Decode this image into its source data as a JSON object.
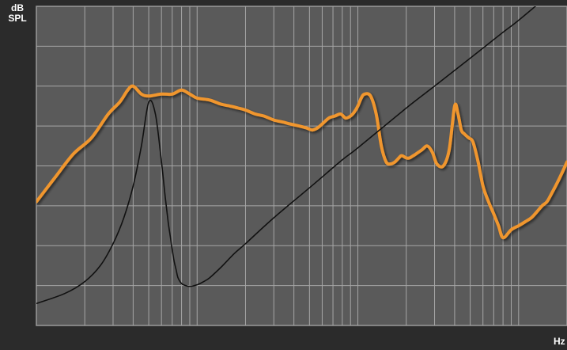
{
  "axis_units": {
    "y_line1": "dB",
    "y_line2": "SPL",
    "x": "Hz"
  },
  "colors": {
    "background": "#2b2b2b",
    "plot_area": "#5a5a5a",
    "grid": "#a6a6a6",
    "response_curve": "#f0962e",
    "impedance_curve": "#111111"
  },
  "chart_data": {
    "type": "line",
    "x_scale": "log",
    "title": "",
    "xlabel": "Hz",
    "ylabel": "dB SPL",
    "xlim": [
      10,
      20000
    ],
    "ylim": [
      0,
      8
    ],
    "grid": true,
    "legend": "none",
    "y_gridlines": [
      1,
      2,
      3,
      4,
      5,
      6,
      7
    ],
    "x_gridlines": [
      20,
      30,
      40,
      50,
      60,
      70,
      80,
      90,
      100,
      200,
      300,
      400,
      500,
      600,
      700,
      800,
      900,
      1000,
      2000,
      3000,
      4000,
      5000,
      6000,
      7000,
      8000,
      9000,
      10000
    ],
    "series": [
      {
        "name": "",
        "role": "frequency-response",
        "x": [
          10,
          13,
          17,
          22,
          28,
          33,
          37,
          40,
          45,
          50,
          60,
          70,
          80,
          90,
          100,
          120,
          140,
          160,
          180,
          200,
          230,
          260,
          300,
          340,
          380,
          430,
          480,
          520,
          560,
          600,
          660,
          720,
          780,
          840,
          900,
          950,
          1000,
          1050,
          1100,
          1200,
          1300,
          1400,
          1500,
          1600,
          1700,
          1800,
          1850,
          1900,
          2000,
          2100,
          2200,
          2300,
          2500,
          2700,
          2900,
          3100,
          3400,
          3700,
          4000,
          4200,
          4400,
          4600,
          4900,
          5200,
          5600,
          6000,
          6500,
          7000,
          7500,
          8000,
          9000,
          10000,
          11000,
          12000,
          13000,
          14000,
          15000,
          16000,
          17000,
          18000,
          19000,
          20000
        ],
        "y": [
          3.1,
          3.7,
          4.3,
          4.7,
          5.3,
          5.6,
          5.9,
          6.0,
          5.8,
          5.75,
          5.8,
          5.8,
          5.9,
          5.8,
          5.7,
          5.65,
          5.55,
          5.5,
          5.45,
          5.4,
          5.3,
          5.25,
          5.15,
          5.1,
          5.05,
          5.0,
          4.95,
          4.9,
          4.95,
          5.05,
          5.2,
          5.25,
          5.3,
          5.2,
          5.25,
          5.35,
          5.5,
          5.7,
          5.8,
          5.75,
          5.3,
          4.5,
          4.1,
          4.05,
          4.1,
          4.2,
          4.25,
          4.25,
          4.2,
          4.2,
          4.25,
          4.3,
          4.4,
          4.5,
          4.35,
          4.05,
          4.0,
          4.4,
          5.5,
          5.3,
          4.9,
          4.8,
          4.7,
          4.6,
          4.1,
          3.5,
          3.1,
          2.8,
          2.5,
          2.2,
          2.4,
          2.5,
          2.6,
          2.7,
          2.85,
          3.0,
          3.1,
          3.3,
          3.5,
          3.7,
          3.9,
          4.1
        ]
      },
      {
        "name": "",
        "role": "impedance",
        "x": [
          10,
          15,
          20,
          25,
          30,
          35,
          40,
          45,
          50,
          55,
          60,
          63,
          66,
          68,
          70,
          72,
          74,
          76,
          80,
          85,
          90,
          100,
          110,
          120,
          140,
          170,
          200,
          300,
          500,
          800,
          1000,
          2000,
          3000,
          5000,
          8000,
          10000,
          15000,
          20000
        ],
        "y": [
          0.55,
          0.8,
          1.1,
          1.5,
          2.05,
          2.7,
          3.5,
          4.5,
          5.6,
          5.3,
          4.1,
          3.3,
          2.6,
          2.25,
          1.9,
          1.6,
          1.4,
          1.2,
          1.05,
          1.0,
          0.98,
          1.02,
          1.1,
          1.2,
          1.45,
          1.8,
          2.05,
          2.7,
          3.45,
          4.15,
          4.45,
          5.45,
          6.0,
          6.7,
          7.35,
          7.65,
          8.25,
          8.7
        ]
      }
    ]
  }
}
